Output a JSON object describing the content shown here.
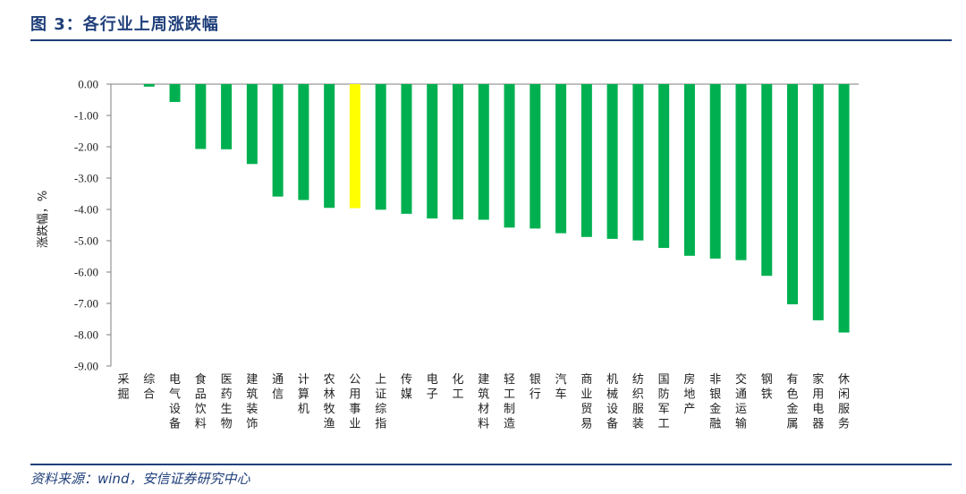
{
  "figure": {
    "title": "图 3：各行业上周涨跌幅",
    "source": "资料来源：wind，安信证券研究中心"
  },
  "colors": {
    "bar": "#00b050",
    "highlight": "#ffff00",
    "rule": "#1f3f7a"
  },
  "chart_data": {
    "type": "bar",
    "title": "",
    "xlabel": "",
    "ylabel": "涨跌幅，%",
    "ylim": [
      -9,
      0
    ],
    "yticks": [
      "0.00",
      "-1.00",
      "-2.00",
      "-3.00",
      "-4.00",
      "-5.00",
      "-6.00",
      "-7.00",
      "-8.00",
      "-9.00"
    ],
    "grid": false,
    "highlight_category": "公用事业",
    "categories": [
      "采掘",
      "综合",
      "电气设备",
      "食品饮料",
      "医药生物",
      "建筑装饰",
      "通信",
      "计算机",
      "农林牧渔",
      "公用事业",
      "上证综指",
      "传媒",
      "电子",
      "化工",
      "建筑材料",
      "轻工制造",
      "银行",
      "汽车",
      "商业贸易",
      "机械设备",
      "纺织服装",
      "国防军工",
      "房地产",
      "非银金融",
      "交通运输",
      "钢铁",
      "有色金属",
      "家用电器",
      "休闲服务"
    ],
    "values": [
      0.0,
      -0.08,
      -0.57,
      -2.07,
      -2.08,
      -2.55,
      -3.59,
      -3.7,
      -3.95,
      -3.96,
      -4.01,
      -4.14,
      -4.29,
      -4.32,
      -4.33,
      -4.58,
      -4.61,
      -4.76,
      -4.88,
      -4.94,
      -4.99,
      -5.23,
      -5.48,
      -5.57,
      -5.62,
      -6.12,
      -7.03,
      -7.54,
      -7.93
    ]
  }
}
